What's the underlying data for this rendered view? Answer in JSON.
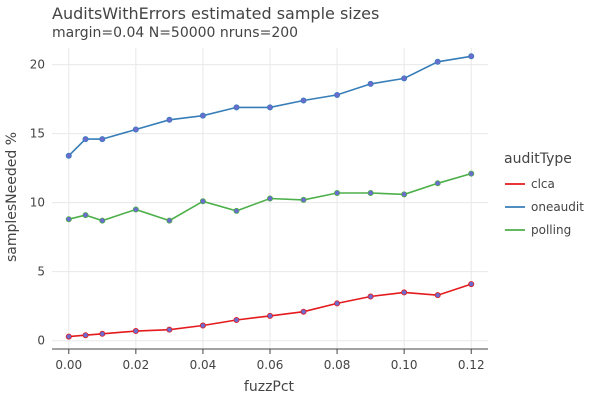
{
  "chart_data": {
    "type": "line",
    "title": "AuditsWithErrors estimated sample sizes",
    "subtitle": "margin=0.04 N=50000 nruns=200",
    "xlabel": "fuzzPct",
    "ylabel": "samplesNeeded %",
    "xlim": [
      -0.005,
      0.125
    ],
    "ylim": [
      -0.6,
      21.2
    ],
    "xticks": [
      0.0,
      0.02,
      0.04,
      0.06,
      0.08,
      0.1,
      0.12
    ],
    "xtick_labels": [
      "0.00",
      "0.02",
      "0.04",
      "0.06",
      "0.08",
      "0.10",
      "0.12"
    ],
    "yticks": [
      0,
      5,
      10,
      15,
      20
    ],
    "ytick_labels": [
      "0",
      "5",
      "10",
      "15",
      "20"
    ],
    "grid": true,
    "legend": {
      "title": "auditType",
      "position": "right"
    },
    "x": [
      0.0,
      0.005,
      0.01,
      0.02,
      0.03,
      0.04,
      0.05,
      0.06,
      0.07,
      0.08,
      0.09,
      0.1,
      0.11,
      0.12
    ],
    "series": [
      {
        "name": "clca",
        "color": "#e41a1c",
        "values": [
          0.3,
          0.4,
          0.5,
          0.7,
          0.8,
          1.1,
          1.5,
          1.8,
          2.1,
          2.7,
          3.2,
          3.5,
          3.3,
          4.1
        ]
      },
      {
        "name": "oneaudit",
        "color": "#377eb8",
        "values": [
          13.4,
          14.6,
          14.6,
          15.3,
          16.0,
          16.3,
          16.9,
          16.9,
          17.4,
          17.8,
          18.6,
          19.0,
          20.2,
          20.6
        ]
      },
      {
        "name": "polling",
        "color": "#4daf4a",
        "values": [
          8.8,
          9.1,
          8.7,
          9.5,
          8.7,
          10.1,
          9.4,
          10.3,
          10.2,
          10.7,
          10.7,
          10.6,
          11.4,
          12.1
        ]
      }
    ],
    "point_color": "#6b6bd0"
  }
}
